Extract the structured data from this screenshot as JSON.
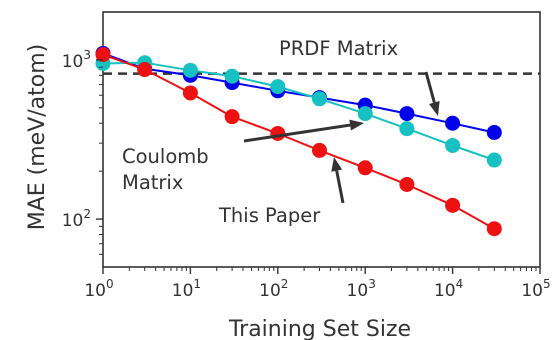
{
  "chart_data": {
    "type": "line",
    "xscale": "log",
    "yscale": "log",
    "xlim": [
      1,
      100000
    ],
    "ylim": [
      50,
      2000
    ],
    "xlabel": "Training Set Size",
    "ylabel": "MAE (meV/atom)",
    "x_ticks": [
      {
        "value": 1,
        "base": "10",
        "exp": "0"
      },
      {
        "value": 10,
        "base": "10",
        "exp": "1"
      },
      {
        "value": 100,
        "base": "10",
        "exp": "2"
      },
      {
        "value": 1000,
        "base": "10",
        "exp": "3"
      },
      {
        "value": 10000,
        "base": "10",
        "exp": "4"
      },
      {
        "value": 100000,
        "base": "10",
        "exp": "5"
      }
    ],
    "y_ticks": [
      {
        "value": 100,
        "base": "10",
        "exp": "2"
      },
      {
        "value": 1000,
        "base": "10",
        "exp": "3"
      }
    ],
    "grid": false,
    "reference_line": {
      "y": 820,
      "style": "dashed",
      "color": "#333333"
    },
    "series": [
      {
        "color": "#0000ee",
        "x": [
          1,
          3,
          10,
          30,
          100,
          300,
          1000,
          3000,
          10000,
          30000
        ],
        "y": [
          1100,
          880,
          800,
          720,
          640,
          580,
          520,
          460,
          400,
          350
        ]
      },
      {
        "color": "#17c1c1",
        "x": [
          1,
          3,
          10,
          30,
          100,
          300,
          1000,
          3000,
          10000,
          30000
        ],
        "y": [
          950,
          960,
          860,
          790,
          680,
          570,
          460,
          370,
          290,
          235
        ]
      },
      {
        "color": "#ee1111",
        "x": [
          1,
          3,
          10,
          30,
          100,
          300,
          1000,
          3000,
          10000,
          30000
        ],
        "y": [
          1080,
          870,
          620,
          440,
          345,
          270,
          210,
          165,
          122,
          87
        ]
      }
    ],
    "annotations": [
      {
        "id": "prdf",
        "lines": [
          "PRDF Matrix"
        ]
      },
      {
        "id": "coulomb",
        "lines": [
          "Coulomb",
          "Matrix"
        ]
      },
      {
        "id": "this_paper",
        "lines": [
          "This Paper"
        ]
      }
    ]
  }
}
